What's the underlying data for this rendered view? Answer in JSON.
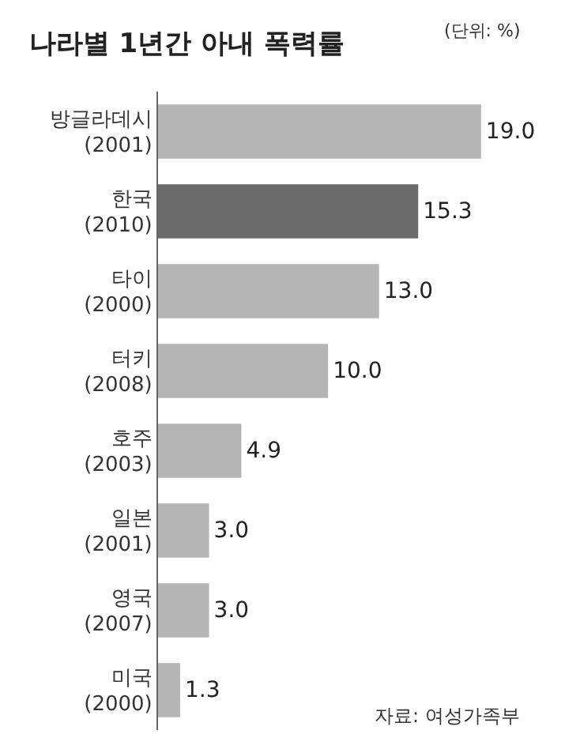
{
  "chart_data": {
    "type": "bar",
    "orientation": "horizontal",
    "title": "나라별 1년간 아내 폭력률",
    "subtitle": "(단위: %)",
    "categories": [
      "방글라데시\n(2001)",
      "한국\n(2010)",
      "타이\n(2000)",
      "터키\n(2008)",
      "호주\n(2003)",
      "일본\n(2001)",
      "영국\n(2007)",
      "미국\n(2000)"
    ],
    "values": [
      19.0,
      15.3,
      13.0,
      10.0,
      4.9,
      3.0,
      3.0,
      1.3
    ],
    "value_labels": [
      "19.0",
      "15.3",
      "13.0",
      "10.0",
      "4.9",
      "3.0",
      "3.0",
      "1.3"
    ],
    "colors": [
      "#b5b5b5",
      "#6b6b6b",
      "#b5b5b5",
      "#b5b5b5",
      "#b5b5b5",
      "#b5b5b5",
      "#b5b5b5",
      "#b5b5b5"
    ],
    "annotations": [
      "자료: 여성가족부"
    ]
  }
}
